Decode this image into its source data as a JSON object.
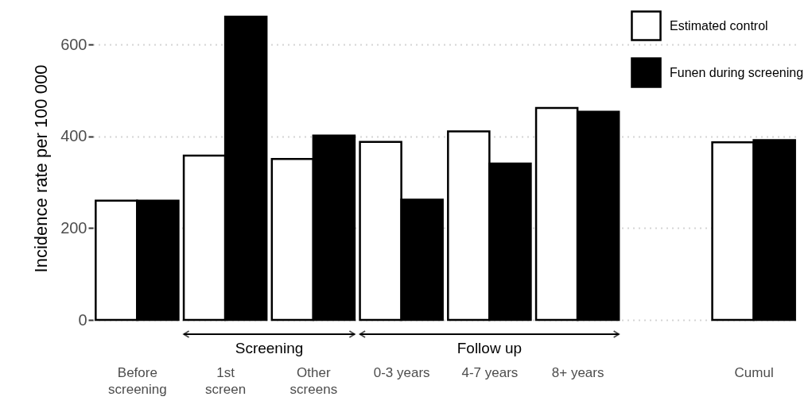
{
  "chart_data": {
    "type": "bar",
    "ylabel": "Incidence rate per 100 000",
    "categories": [
      "Before screening",
      "1st screen",
      "Other screens",
      "0-3 years",
      "4-7 years",
      "8+ years",
      null,
      "Cumul"
    ],
    "series": [
      {
        "name": "Estimated control",
        "color": "#ffffff",
        "values": [
          260,
          358,
          351,
          388,
          411,
          462,
          null,
          387
        ]
      },
      {
        "name": "Funen during screening",
        "color": "#000000",
        "values": [
          260,
          661,
          402,
          262,
          341,
          454,
          null,
          392
        ]
      }
    ],
    "ylim": [
      0,
      661
    ],
    "yticks": [
      0,
      200,
      400,
      600
    ],
    "grid": "y",
    "legend": "top right",
    "annotations": [
      "Screening",
      "Follow up"
    ]
  }
}
